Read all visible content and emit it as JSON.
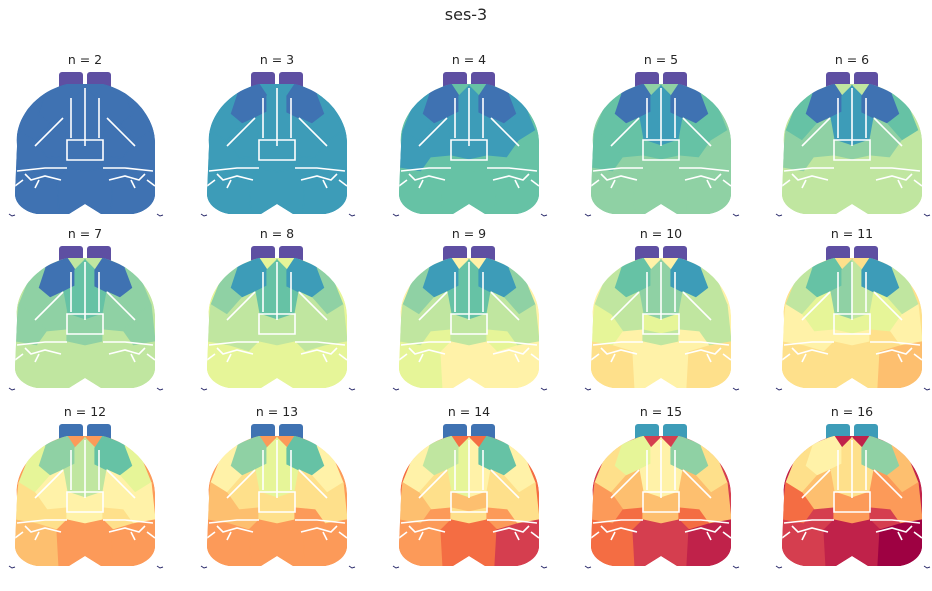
{
  "figure": {
    "title": "ses-3",
    "panels": [
      {
        "label": "n = 2",
        "ob": "purple",
        "regions": [
          "blue",
          "blue",
          "blue",
          "blue",
          "blue",
          "blue",
          "blue",
          "blue",
          "blue",
          "blue",
          "blue",
          "blue",
          "blue",
          "blue",
          "blue",
          "blue",
          "blue",
          "blue"
        ]
      },
      {
        "label": "n = 3",
        "ob": "purple",
        "regions": [
          "blue",
          "teal",
          "teal",
          "blue",
          "teal",
          "teal",
          "teal",
          "teal",
          "teal",
          "teal",
          "teal",
          "teal",
          "teal",
          "teal",
          "teal",
          "teal",
          "teal",
          "teal"
        ]
      },
      {
        "label": "n = 4",
        "ob": "purple",
        "regions": [
          "blue",
          "teal",
          "teal",
          "blue",
          "teal",
          "teal",
          "teal",
          "teal",
          "teal",
          "teal",
          "green",
          "green",
          "green",
          "green",
          "green",
          "green",
          "green",
          "green"
        ]
      },
      {
        "label": "n = 5",
        "ob": "purple",
        "regions": [
          "blue",
          "teal",
          "teal",
          "blue",
          "green",
          "green",
          "green",
          "green",
          "green",
          "green",
          "lgreen",
          "lgreen",
          "lgreen",
          "lgreen",
          "lgreen",
          "lgreen",
          "lgreen",
          "lgreen"
        ]
      },
      {
        "label": "n = 6",
        "ob": "purple",
        "regions": [
          "blue",
          "teal",
          "teal",
          "blue",
          "green",
          "lgreen",
          "lgreen",
          "green",
          "lgreen",
          "lgreen",
          "ygreen",
          "ygreen",
          "ygreen",
          "ygreen",
          "ygreen",
          "ygreen",
          "ygreen",
          "ygreen"
        ]
      },
      {
        "label": "n = 7",
        "ob": "purple",
        "regions": [
          "blue",
          "green",
          "green",
          "blue",
          "lgreen",
          "lgreen",
          "lgreen",
          "lgreen",
          "lgreen",
          "lgreen",
          "ygreen",
          "lgreen",
          "lgreen",
          "ygreen",
          "ygreen",
          "ygreen",
          "ygreen",
          "ygreen"
        ]
      },
      {
        "label": "n = 8",
        "ob": "purple",
        "regions": [
          "teal",
          "green",
          "green",
          "teal",
          "lgreen",
          "ygreen",
          "ygreen",
          "lgreen",
          "ygreen",
          "ygreen",
          "ygreen",
          "ygreen",
          "ygreen",
          "ygreen",
          "pyellow",
          "pyellow",
          "pyellow",
          "pyellow"
        ]
      },
      {
        "label": "n = 9",
        "ob": "purple",
        "regions": [
          "teal",
          "green",
          "green",
          "teal",
          "lgreen",
          "ygreen",
          "ygreen",
          "lgreen",
          "ygreen",
          "ygreen",
          "pyellow",
          "ygreen",
          "ygreen",
          "pyellow",
          "pyellow",
          "cream",
          "cream",
          "pyellow"
        ]
      },
      {
        "label": "n = 10",
        "ob": "purple",
        "regions": [
          "green",
          "lgreen",
          "lgreen",
          "teal",
          "ygreen",
          "ygreen",
          "pyellow",
          "ygreen",
          "ygreen",
          "pyellow",
          "cream",
          "ygreen",
          "ygreen",
          "cream",
          "ltan",
          "cream",
          "ltan",
          "ltan"
        ]
      },
      {
        "label": "n = 11",
        "ob": "purple",
        "regions": [
          "green",
          "lgreen",
          "ygreen",
          "teal",
          "ygreen",
          "pyellow",
          "pyellow",
          "ygreen",
          "pyellow",
          "cream",
          "cream",
          "cream",
          "cream",
          "ltan",
          "ltan",
          "ltan",
          "lorange",
          "lorange"
        ]
      },
      {
        "label": "n = 12",
        "ob": "blue",
        "regions": [
          "lgreen",
          "ygreen",
          "ygreen",
          "green",
          "pyellow",
          "cream",
          "cream",
          "pyellow",
          "cream",
          "ltan",
          "ltan",
          "cream",
          "cream",
          "ltan",
          "lorange",
          "orange",
          "orange",
          "lorange"
        ]
      },
      {
        "label": "n = 13",
        "ob": "blue",
        "regions": [
          "lgreen",
          "pyellow",
          "pyellow",
          "green",
          "cream",
          "ltan",
          "ltan",
          "cream",
          "ltan",
          "lorange",
          "lorange",
          "ltan",
          "ltan",
          "orange",
          "orange",
          "orange",
          "orange",
          "dorange"
        ]
      },
      {
        "label": "n = 14",
        "ob": "blue",
        "regions": [
          "ygreen",
          "pyellow",
          "cream",
          "green",
          "cream",
          "ltan",
          "lorange",
          "cream",
          "ltan",
          "lorange",
          "orange",
          "ltan",
          "ltan",
          "orange",
          "orange",
          "dorange",
          "red",
          "dorange"
        ]
      },
      {
        "label": "n = 15",
        "ob": "teal",
        "regions": [
          "pyellow",
          "cream",
          "cream",
          "lgreen",
          "ltan",
          "lorange",
          "lorange",
          "ltan",
          "lorange",
          "orange",
          "dorange",
          "lorange",
          "lorange",
          "dorange",
          "dorange",
          "red",
          "crimson",
          "dorange"
        ]
      },
      {
        "label": "n = 16",
        "ob": "teal",
        "regions": [
          "cream",
          "ltan",
          "ltan",
          "lgreen",
          "ltan",
          "lorange",
          "orange",
          "lorange",
          "orange",
          "dorange",
          "red",
          "orange",
          "orange",
          "red",
          "red",
          "crimson",
          "maroon",
          "crimson"
        ]
      }
    ]
  },
  "palette": {
    "purple": "#5e4fa2",
    "blue": "#3f72b2",
    "teal": "#3d9cb8",
    "green": "#66c2a5",
    "lgreen": "#8fd1a4",
    "ygreen": "#c0e6a0",
    "pyellow": "#e6f598",
    "cream": "#fff2a8",
    "ltan": "#fee08b",
    "lorange": "#fdbf6f",
    "orange": "#fc9a59",
    "dorange": "#f46d43",
    "red": "#d53e4f",
    "crimson": "#c0224a",
    "maroon": "#9e0142"
  }
}
